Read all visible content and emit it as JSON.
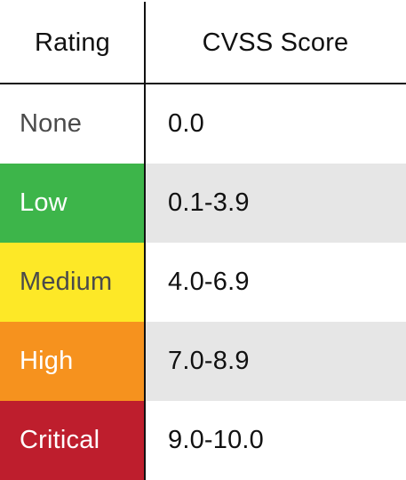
{
  "header": {
    "rating_label": "Rating",
    "score_label": "CVSS Score"
  },
  "rows": [
    {
      "rating": "None",
      "score": "0.0",
      "rating_bg": "#ffffff",
      "rating_color": "#4a4a4a",
      "score_shaded": false
    },
    {
      "rating": "Low",
      "score": "0.1-3.9",
      "rating_bg": "#3db54a",
      "rating_color": "#ffffff",
      "score_shaded": true
    },
    {
      "rating": "Medium",
      "score": "4.0-6.9",
      "rating_bg": "#fde827",
      "rating_color": "#4a4a4a",
      "score_shaded": false
    },
    {
      "rating": "High",
      "score": "7.0-8.9",
      "rating_bg": "#f6921e",
      "rating_color": "#ffffff",
      "score_shaded": true
    },
    {
      "rating": "Critical",
      "score": "9.0-10.0",
      "rating_bg": "#be1e2d",
      "rating_color": "#ffffff",
      "score_shaded": false
    }
  ]
}
